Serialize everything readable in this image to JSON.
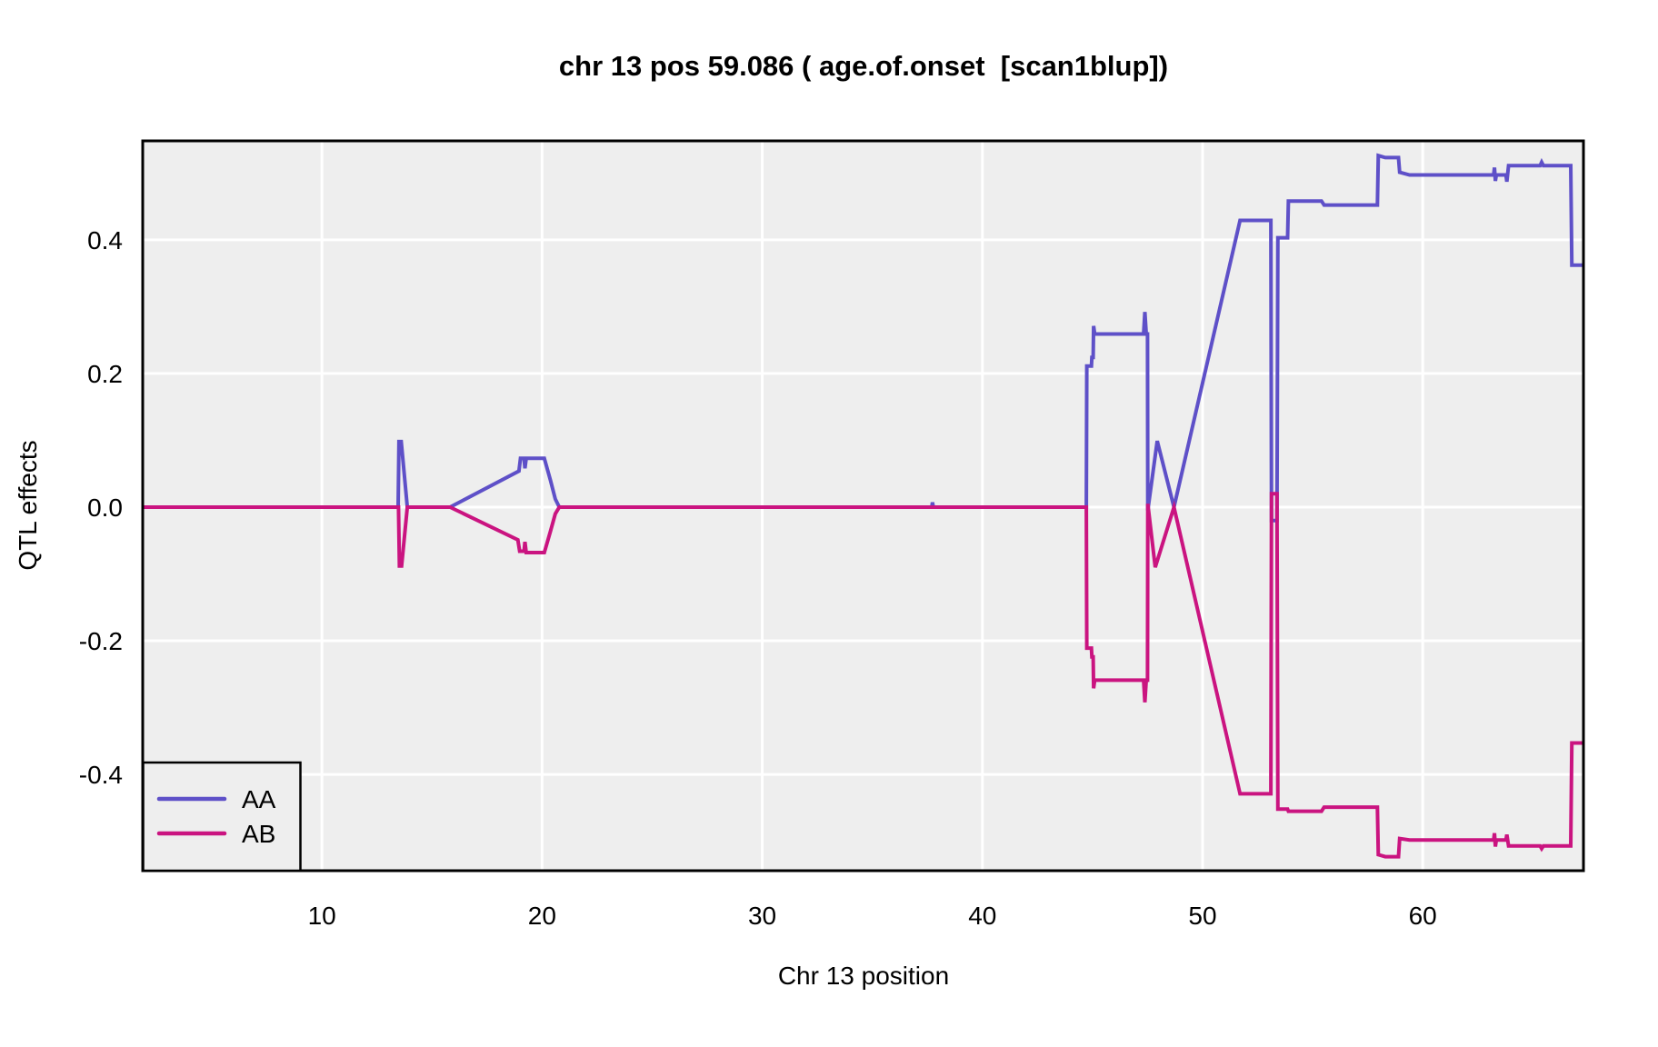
{
  "chart_data": {
    "type": "line",
    "title": "chr 13 pos 59.086 ( age.of.onset  [scan1blup])",
    "xlabel": "Chr 13 position",
    "ylabel": "QTL effects",
    "xlim": [
      1.86,
      67.3
    ],
    "ylim": [
      -0.544,
      0.548
    ],
    "x_ticks": [
      10,
      20,
      30,
      40,
      50,
      60
    ],
    "y_ticks": [
      {
        "v": 0.4,
        "label": "0.4"
      },
      {
        "v": 0.2,
        "label": "0.2"
      },
      {
        "v": 0.0,
        "label": "0.0"
      },
      {
        "v": -0.2,
        "label": "-0.2"
      },
      {
        "v": -0.4,
        "label": "-0.4"
      }
    ],
    "grid": true,
    "legend_position": "bottom-left",
    "series": [
      {
        "name": "AA",
        "color": "#5E50C8",
        "points": [
          [
            1.86,
            0
          ],
          [
            13.46,
            0
          ],
          [
            13.5,
            0.098
          ],
          [
            13.6,
            0.098
          ],
          [
            13.88,
            0
          ],
          [
            15.82,
            0
          ],
          [
            18.95,
            0.054
          ],
          [
            19.02,
            0.073
          ],
          [
            19.18,
            0.073
          ],
          [
            19.22,
            0.058
          ],
          [
            19.28,
            0.073
          ],
          [
            20.1,
            0.073
          ],
          [
            20.38,
            0.04
          ],
          [
            20.6,
            0.012
          ],
          [
            20.78,
            0
          ],
          [
            37.7,
            0
          ],
          [
            37.73,
            0.007
          ],
          [
            37.77,
            0
          ],
          [
            44.72,
            0
          ],
          [
            44.74,
            0.211
          ],
          [
            44.95,
            0.211
          ],
          [
            44.97,
            0.224
          ],
          [
            45.03,
            0.224
          ],
          [
            45.05,
            0.271
          ],
          [
            45.1,
            0.259
          ],
          [
            47.32,
            0.259
          ],
          [
            47.38,
            0.292
          ],
          [
            47.44,
            0.259
          ],
          [
            47.5,
            0.259
          ],
          [
            47.51,
            -0.005
          ],
          [
            47.94,
            0.099
          ],
          [
            48.7,
            0
          ],
          [
            51.7,
            0.429
          ],
          [
            53.1,
            0.429
          ],
          [
            53.13,
            -0.02
          ],
          [
            53.38,
            -0.02
          ],
          [
            53.42,
            0.403
          ],
          [
            53.86,
            0.403
          ],
          [
            53.9,
            0.458
          ],
          [
            55.4,
            0.458
          ],
          [
            55.52,
            0.452
          ],
          [
            57.94,
            0.452
          ],
          [
            57.98,
            0.526
          ],
          [
            58.3,
            0.523
          ],
          [
            58.9,
            0.523
          ],
          [
            58.95,
            0.501
          ],
          [
            59.4,
            0.497
          ],
          [
            63.22,
            0.497
          ],
          [
            63.26,
            0.508
          ],
          [
            63.3,
            0.488
          ],
          [
            63.34,
            0.497
          ],
          [
            63.78,
            0.497
          ],
          [
            63.82,
            0.487
          ],
          [
            63.9,
            0.511
          ],
          [
            65.33,
            0.511
          ],
          [
            65.4,
            0.516
          ],
          [
            65.48,
            0.511
          ],
          [
            66.72,
            0.511
          ],
          [
            66.77,
            0.362
          ],
          [
            67.3,
            0.362
          ]
        ]
      },
      {
        "name": "AB",
        "color": "#CA1480",
        "points": [
          [
            1.86,
            0
          ],
          [
            13.48,
            0
          ],
          [
            13.52,
            -0.088
          ],
          [
            13.62,
            -0.088
          ],
          [
            13.88,
            0
          ],
          [
            15.82,
            0
          ],
          [
            18.9,
            -0.049
          ],
          [
            18.98,
            -0.066
          ],
          [
            19.18,
            -0.066
          ],
          [
            19.22,
            -0.052
          ],
          [
            19.28,
            -0.068
          ],
          [
            20.1,
            -0.068
          ],
          [
            20.38,
            -0.036
          ],
          [
            20.6,
            -0.01
          ],
          [
            20.78,
            0
          ],
          [
            44.72,
            0
          ],
          [
            44.74,
            -0.211
          ],
          [
            44.95,
            -0.211
          ],
          [
            44.97,
            -0.224
          ],
          [
            45.03,
            -0.224
          ],
          [
            45.05,
            -0.271
          ],
          [
            45.1,
            -0.259
          ],
          [
            47.32,
            -0.259
          ],
          [
            47.38,
            -0.292
          ],
          [
            47.44,
            -0.259
          ],
          [
            47.5,
            -0.259
          ],
          [
            47.51,
            0.005
          ],
          [
            47.85,
            -0.09
          ],
          [
            48.7,
            0
          ],
          [
            51.7,
            -0.429
          ],
          [
            53.1,
            -0.429
          ],
          [
            53.13,
            0.02
          ],
          [
            53.38,
            0.02
          ],
          [
            53.42,
            -0.452
          ],
          [
            53.86,
            -0.452
          ],
          [
            53.9,
            -0.455
          ],
          [
            55.4,
            -0.455
          ],
          [
            55.52,
            -0.449
          ],
          [
            57.94,
            -0.449
          ],
          [
            57.98,
            -0.52
          ],
          [
            58.3,
            -0.523
          ],
          [
            58.9,
            -0.523
          ],
          [
            58.95,
            -0.496
          ],
          [
            59.4,
            -0.498
          ],
          [
            63.22,
            -0.498
          ],
          [
            63.26,
            -0.488
          ],
          [
            63.3,
            -0.508
          ],
          [
            63.34,
            -0.498
          ],
          [
            63.78,
            -0.498
          ],
          [
            63.82,
            -0.49
          ],
          [
            63.9,
            -0.507
          ],
          [
            65.33,
            -0.507
          ],
          [
            65.4,
            -0.511
          ],
          [
            65.48,
            -0.507
          ],
          [
            66.72,
            -0.507
          ],
          [
            66.77,
            -0.353
          ],
          [
            67.3,
            -0.353
          ]
        ]
      }
    ]
  },
  "colors": {
    "panel_bg": "#EEEEEE",
    "grid": "#FFFFFF",
    "border": "#000000",
    "text": "#000000"
  },
  "legend": {
    "entries": [
      {
        "label": "AA"
      },
      {
        "label": "AB"
      }
    ]
  }
}
